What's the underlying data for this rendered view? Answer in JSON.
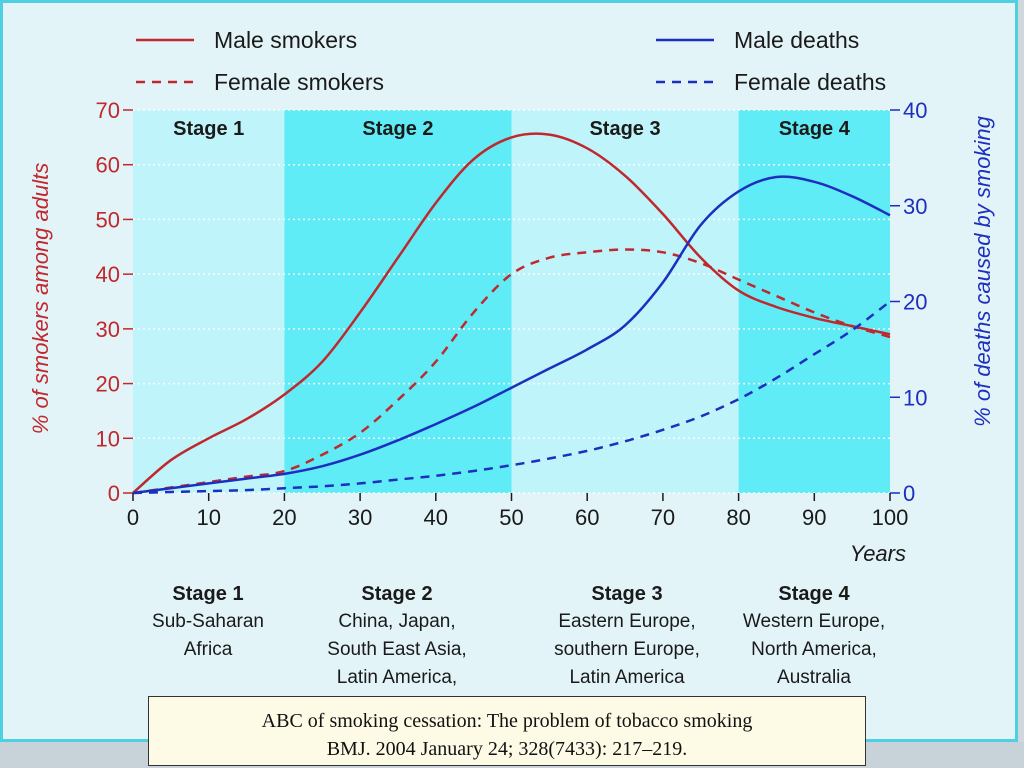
{
  "chart_data": {
    "type": "line",
    "x": [
      0,
      5,
      10,
      15,
      20,
      25,
      30,
      35,
      40,
      45,
      50,
      55,
      60,
      65,
      70,
      75,
      80,
      85,
      90,
      95,
      100
    ],
    "xlabel": "Years",
    "x_ticks": [
      "0",
      "10",
      "20",
      "30",
      "40",
      "50",
      "60",
      "70",
      "80",
      "90",
      "100"
    ],
    "xlim": [
      0,
      100
    ],
    "y_left": {
      "label": "% of smokers among adults",
      "ylim": [
        0,
        70
      ],
      "ticks": [
        "0",
        "10",
        "20",
        "30",
        "40",
        "50",
        "60",
        "70"
      ]
    },
    "y_right": {
      "label": "% of deaths caused by smoking",
      "ylim": [
        0,
        40
      ],
      "ticks": [
        "0",
        "10",
        "20",
        "30",
        "40"
      ]
    },
    "stages": [
      {
        "label": "Stage 1",
        "from": 0,
        "to": 20,
        "shaded": false
      },
      {
        "label": "Stage 2",
        "from": 20,
        "to": 50,
        "shaded": true
      },
      {
        "label": "Stage 3",
        "from": 50,
        "to": 80,
        "shaded": false
      },
      {
        "label": "Stage 4",
        "from": 80,
        "to": 100,
        "shaded": true
      }
    ],
    "series": [
      {
        "name": "Male smokers",
        "axis": "left",
        "color": "#c0282d",
        "dash": false,
        "values": [
          0,
          6,
          10,
          13.5,
          18,
          24,
          33,
          43,
          53,
          61,
          65,
          65.5,
          63,
          58,
          51,
          43,
          37,
          34,
          32,
          30.5,
          29
        ]
      },
      {
        "name": "Female smokers",
        "axis": "left",
        "color": "#c0282d",
        "dash": true,
        "values": [
          0,
          1,
          2,
          3,
          4,
          7,
          11,
          17,
          24,
          33,
          40,
          43,
          44,
          44.5,
          44,
          42,
          39,
          36,
          33,
          30.5,
          28.5
        ]
      },
      {
        "name": "Male deaths",
        "axis": "right",
        "color": "#1d2fbf",
        "dash": false,
        "values": [
          0,
          0.5,
          1,
          1.5,
          2,
          2.8,
          4,
          5.5,
          7.2,
          9,
          11,
          13,
          15,
          17.5,
          22,
          28,
          31.5,
          33,
          32.5,
          31,
          29
        ]
      },
      {
        "name": "Female deaths",
        "axis": "right",
        "color": "#1d2fbf",
        "dash": true,
        "values": [
          0,
          0.1,
          0.2,
          0.3,
          0.5,
          0.7,
          1,
          1.4,
          1.8,
          2.3,
          2.9,
          3.6,
          4.4,
          5.4,
          6.6,
          8,
          9.8,
          12,
          14.5,
          17,
          20
        ]
      }
    ]
  },
  "regions": [
    {
      "title": "Stage 1",
      "lines": [
        "Sub-Saharan",
        "Africa"
      ]
    },
    {
      "title": "Stage 2",
      "lines": [
        "China, Japan,",
        "South East Asia,",
        "Latin America,"
      ]
    },
    {
      "title": "Stage 3",
      "lines": [
        "Eastern Europe,",
        "southern Europe,",
        "Latin America"
      ]
    },
    {
      "title": "Stage 4",
      "lines": [
        "Western Europe,",
        "North America,",
        "Australia"
      ]
    }
  ],
  "citation": {
    "line1": "ABC of smoking cessation: The problem of tobacco smoking",
    "line2": "BMJ. 2004 January 24; 328(7433): 217–219."
  }
}
